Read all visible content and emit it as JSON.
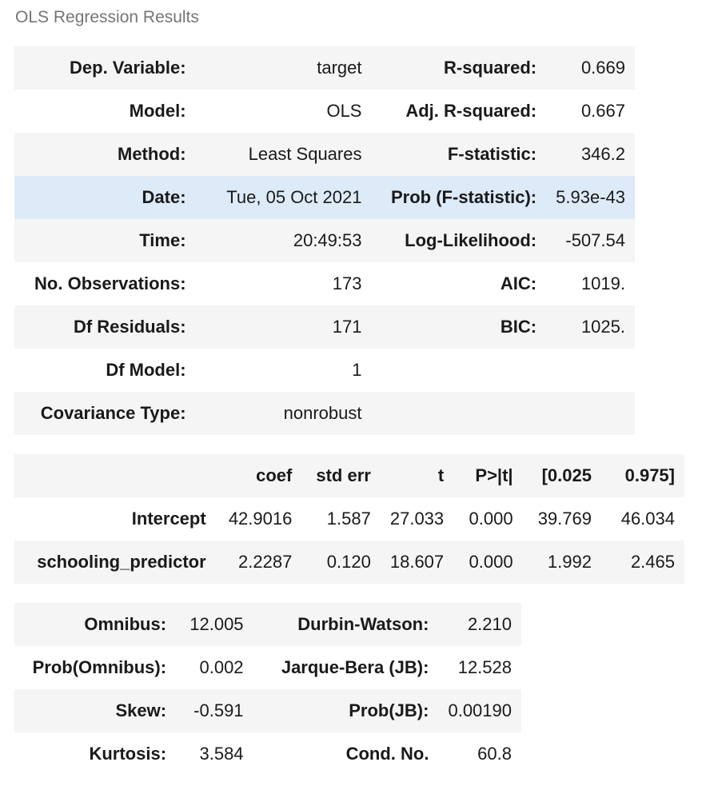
{
  "caption": "OLS Regression Results",
  "summary": {
    "rows": [
      {
        "l1": "Dep. Variable:",
        "v1": "target",
        "l2": "R-squared:",
        "v2": "0.669"
      },
      {
        "l1": "Model:",
        "v1": "OLS",
        "l2": "Adj. R-squared:",
        "v2": "0.667"
      },
      {
        "l1": "Method:",
        "v1": "Least Squares",
        "l2": "F-statistic:",
        "v2": "346.2"
      },
      {
        "l1": "Date:",
        "v1": "Tue, 05 Oct 2021",
        "l2": "Prob (F-statistic):",
        "v2": "5.93e-43"
      },
      {
        "l1": "Time:",
        "v1": "20:49:53",
        "l2": "Log-Likelihood:",
        "v2": "-507.54"
      },
      {
        "l1": "No. Observations:",
        "v1": "173",
        "l2": "AIC:",
        "v2": "1019."
      },
      {
        "l1": "Df Residuals:",
        "v1": "171",
        "l2": "BIC:",
        "v2": "1025."
      },
      {
        "l1": "Df Model:",
        "v1": "1",
        "l2": "",
        "v2": ""
      },
      {
        "l1": "Covariance Type:",
        "v1": "nonrobust",
        "l2": "",
        "v2": ""
      }
    ]
  },
  "coefficients": {
    "headers": [
      "",
      "coef",
      "std err",
      "t",
      "P>|t|",
      "[0.025",
      "0.975]"
    ],
    "rows": [
      {
        "name": "Intercept",
        "coef": "42.9016",
        "std_err": "1.587",
        "t": "27.033",
        "p": "0.000",
        "lo": "39.769",
        "hi": "46.034"
      },
      {
        "name": "schooling_predictor",
        "coef": "2.2287",
        "std_err": "0.120",
        "t": "18.607",
        "p": "0.000",
        "lo": "1.992",
        "hi": "2.465"
      }
    ]
  },
  "diagnostics": {
    "rows": [
      {
        "l1": "Omnibus:",
        "v1": "12.005",
        "l2": "Durbin-Watson:",
        "v2": "2.210"
      },
      {
        "l1": "Prob(Omnibus):",
        "v1": "0.002",
        "l2": "Jarque-Bera (JB):",
        "v2": "12.528"
      },
      {
        "l1": "Skew:",
        "v1": "-0.591",
        "l2": "Prob(JB):",
        "v2": "0.00190"
      },
      {
        "l1": "Kurtosis:",
        "v1": "3.584",
        "l2": "Cond. No.",
        "v2": "60.8"
      }
    ]
  },
  "colors": {
    "row_stripe": "#f5f5f5",
    "row_hover": "#ddeaf8",
    "caption_text": "#757575"
  }
}
